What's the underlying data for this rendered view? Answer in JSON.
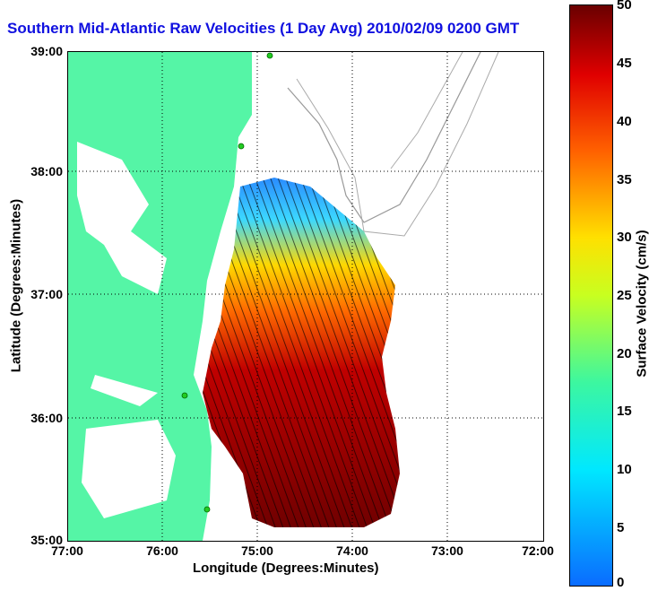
{
  "title": "Southern Mid-Atlantic Raw Velocities (1 Day Avg) 2010/02/09 0200 GMT",
  "axes": {
    "xlabel": "Longitude (Degrees:Minutes)",
    "ylabel": "Latitude (Degrees:Minutes)",
    "xticks": [
      "77:00",
      "76:00",
      "75:00",
      "74:00",
      "73:00",
      "72:00"
    ],
    "yticks": [
      "39:00",
      "38:00",
      "37:00",
      "36:00",
      "35:00"
    ]
  },
  "colorbar": {
    "label": "Surface Velocity (cm/s)",
    "ticks": [
      "50",
      "45",
      "40",
      "35",
      "30",
      "25",
      "20",
      "15",
      "10",
      "5",
      "0"
    ],
    "range": [
      0,
      50
    ],
    "colormap": "jet"
  },
  "colors": {
    "land": "#55f5a6",
    "title": "#1010e0",
    "station": "#22cc22"
  },
  "map_style": {
    "gridlines": "dotted-black",
    "bathymetry_contours": "gray",
    "velocity_vectors": "black"
  }
}
